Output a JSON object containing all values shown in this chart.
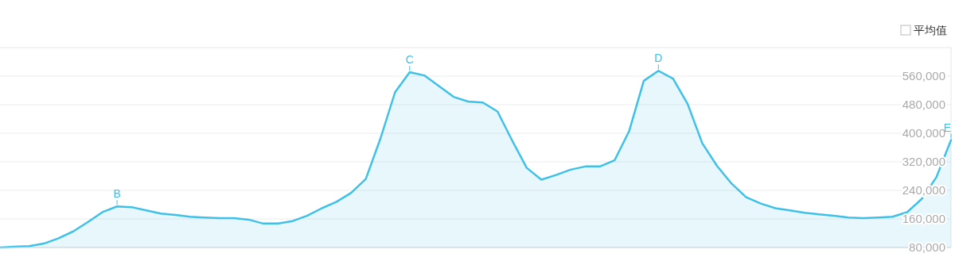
{
  "chart_data": {
    "type": "area",
    "categories": [
      null,
      null,
      null,
      null,
      null,
      null,
      null,
      null,
      null,
      null,
      null,
      null,
      null,
      null,
      null,
      null,
      null,
      null,
      null,
      null,
      null,
      null,
      null,
      null,
      null,
      null,
      null,
      null,
      null,
      null,
      null,
      null,
      null,
      null,
      null,
      null,
      null,
      null,
      null,
      null,
      null,
      null,
      null,
      null,
      null,
      null,
      null,
      null,
      null,
      null,
      null,
      null,
      null,
      null,
      null,
      null,
      null,
      null,
      null,
      null,
      null,
      null,
      null,
      null,
      null,
      null
    ],
    "series": [
      {
        "color": "#3ec1e8",
        "values": [
          80000,
          82000,
          84000,
          91000,
          106000,
          125000,
          151000,
          179000,
          195000,
          193000,
          184000,
          175000,
          171000,
          166000,
          164000,
          162000,
          162000,
          158000,
          147000,
          147000,
          154000,
          169000,
          190000,
          208000,
          233000,
          272000,
          385000,
          515000,
          571000,
          562000,
          532000,
          502000,
          489000,
          486000,
          461000,
          380000,
          303000,
          270000,
          283000,
          298000,
          307000,
          307000,
          324000,
          406000,
          547000,
          575000,
          553000,
          482000,
          372000,
          309000,
          259000,
          221000,
          203000,
          190000,
          184000,
          177000,
          173000,
          169000,
          164000,
          162000,
          164000,
          166000,
          179000,
          216000,
          277000,
          381000
        ]
      }
    ],
    "ylim": [
      80000,
      640000
    ],
    "yticks": [
      {
        "value": 80000,
        "label": "80,000"
      },
      {
        "value": 160000,
        "label": "160,000"
      },
      {
        "value": 240000,
        "label": "240,000"
      },
      {
        "value": 320000,
        "label": "320,000"
      },
      {
        "value": 400000,
        "label": "400,000"
      },
      {
        "value": 480000,
        "label": "480,000"
      },
      {
        "value": 560000,
        "label": "560,000"
      }
    ],
    "tick_labels": "y",
    "grid": "y",
    "marker": "none",
    "line_style": "solid",
    "annotations": [
      {
        "text": "B",
        "y": 195000
      },
      {
        "text": "C",
        "y": 571000
      },
      {
        "text": "D",
        "y": 575000
      },
      {
        "text": "E",
        "y": 381000
      },
      "平均值"
    ]
  }
}
